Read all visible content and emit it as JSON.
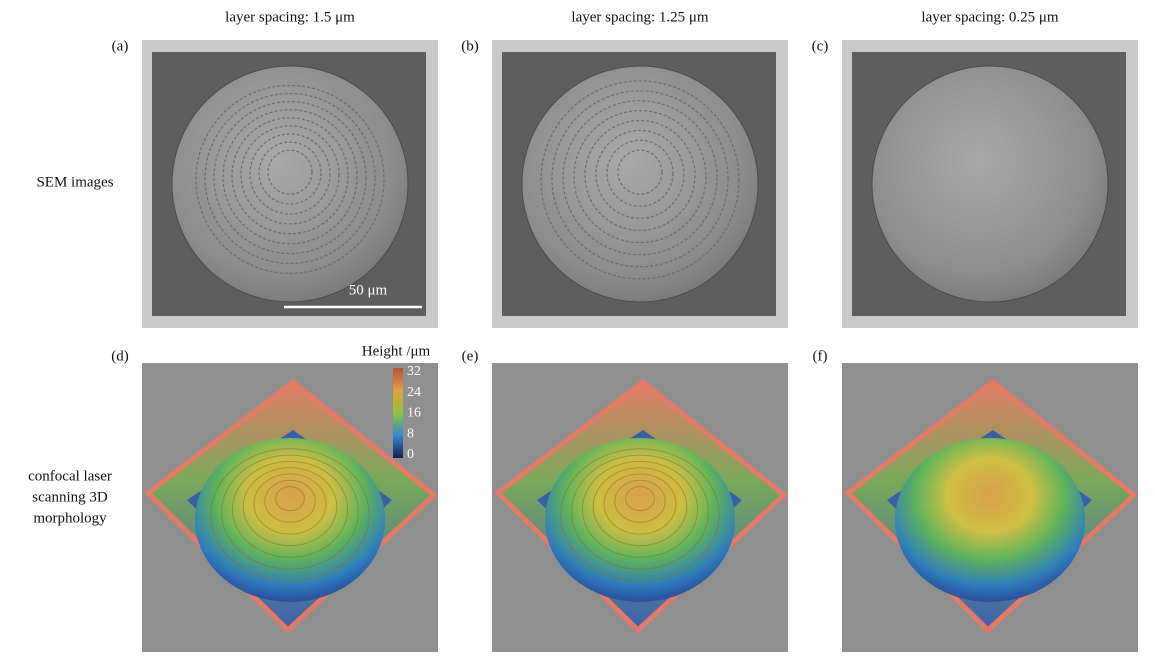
{
  "columns": [
    {
      "header": "layer spacing: 1.5 μm",
      "sem_label": "(a)",
      "confocal_label": "(d)"
    },
    {
      "header": "layer spacing: 1.25 μm",
      "sem_label": "(b)",
      "confocal_label": "(e)"
    },
    {
      "header": "layer spacing: 0.25 μm",
      "sem_label": "(c)",
      "confocal_label": "(f)"
    }
  ],
  "rows": {
    "sem": "SEM images",
    "confocal": [
      "confocal laser",
      "scanning 3D",
      "morphology"
    ]
  },
  "scale_bar": "50 μm",
  "colorbar": {
    "title": "Height /μm",
    "ticks": [
      32,
      24,
      16,
      8,
      0
    ]
  }
}
